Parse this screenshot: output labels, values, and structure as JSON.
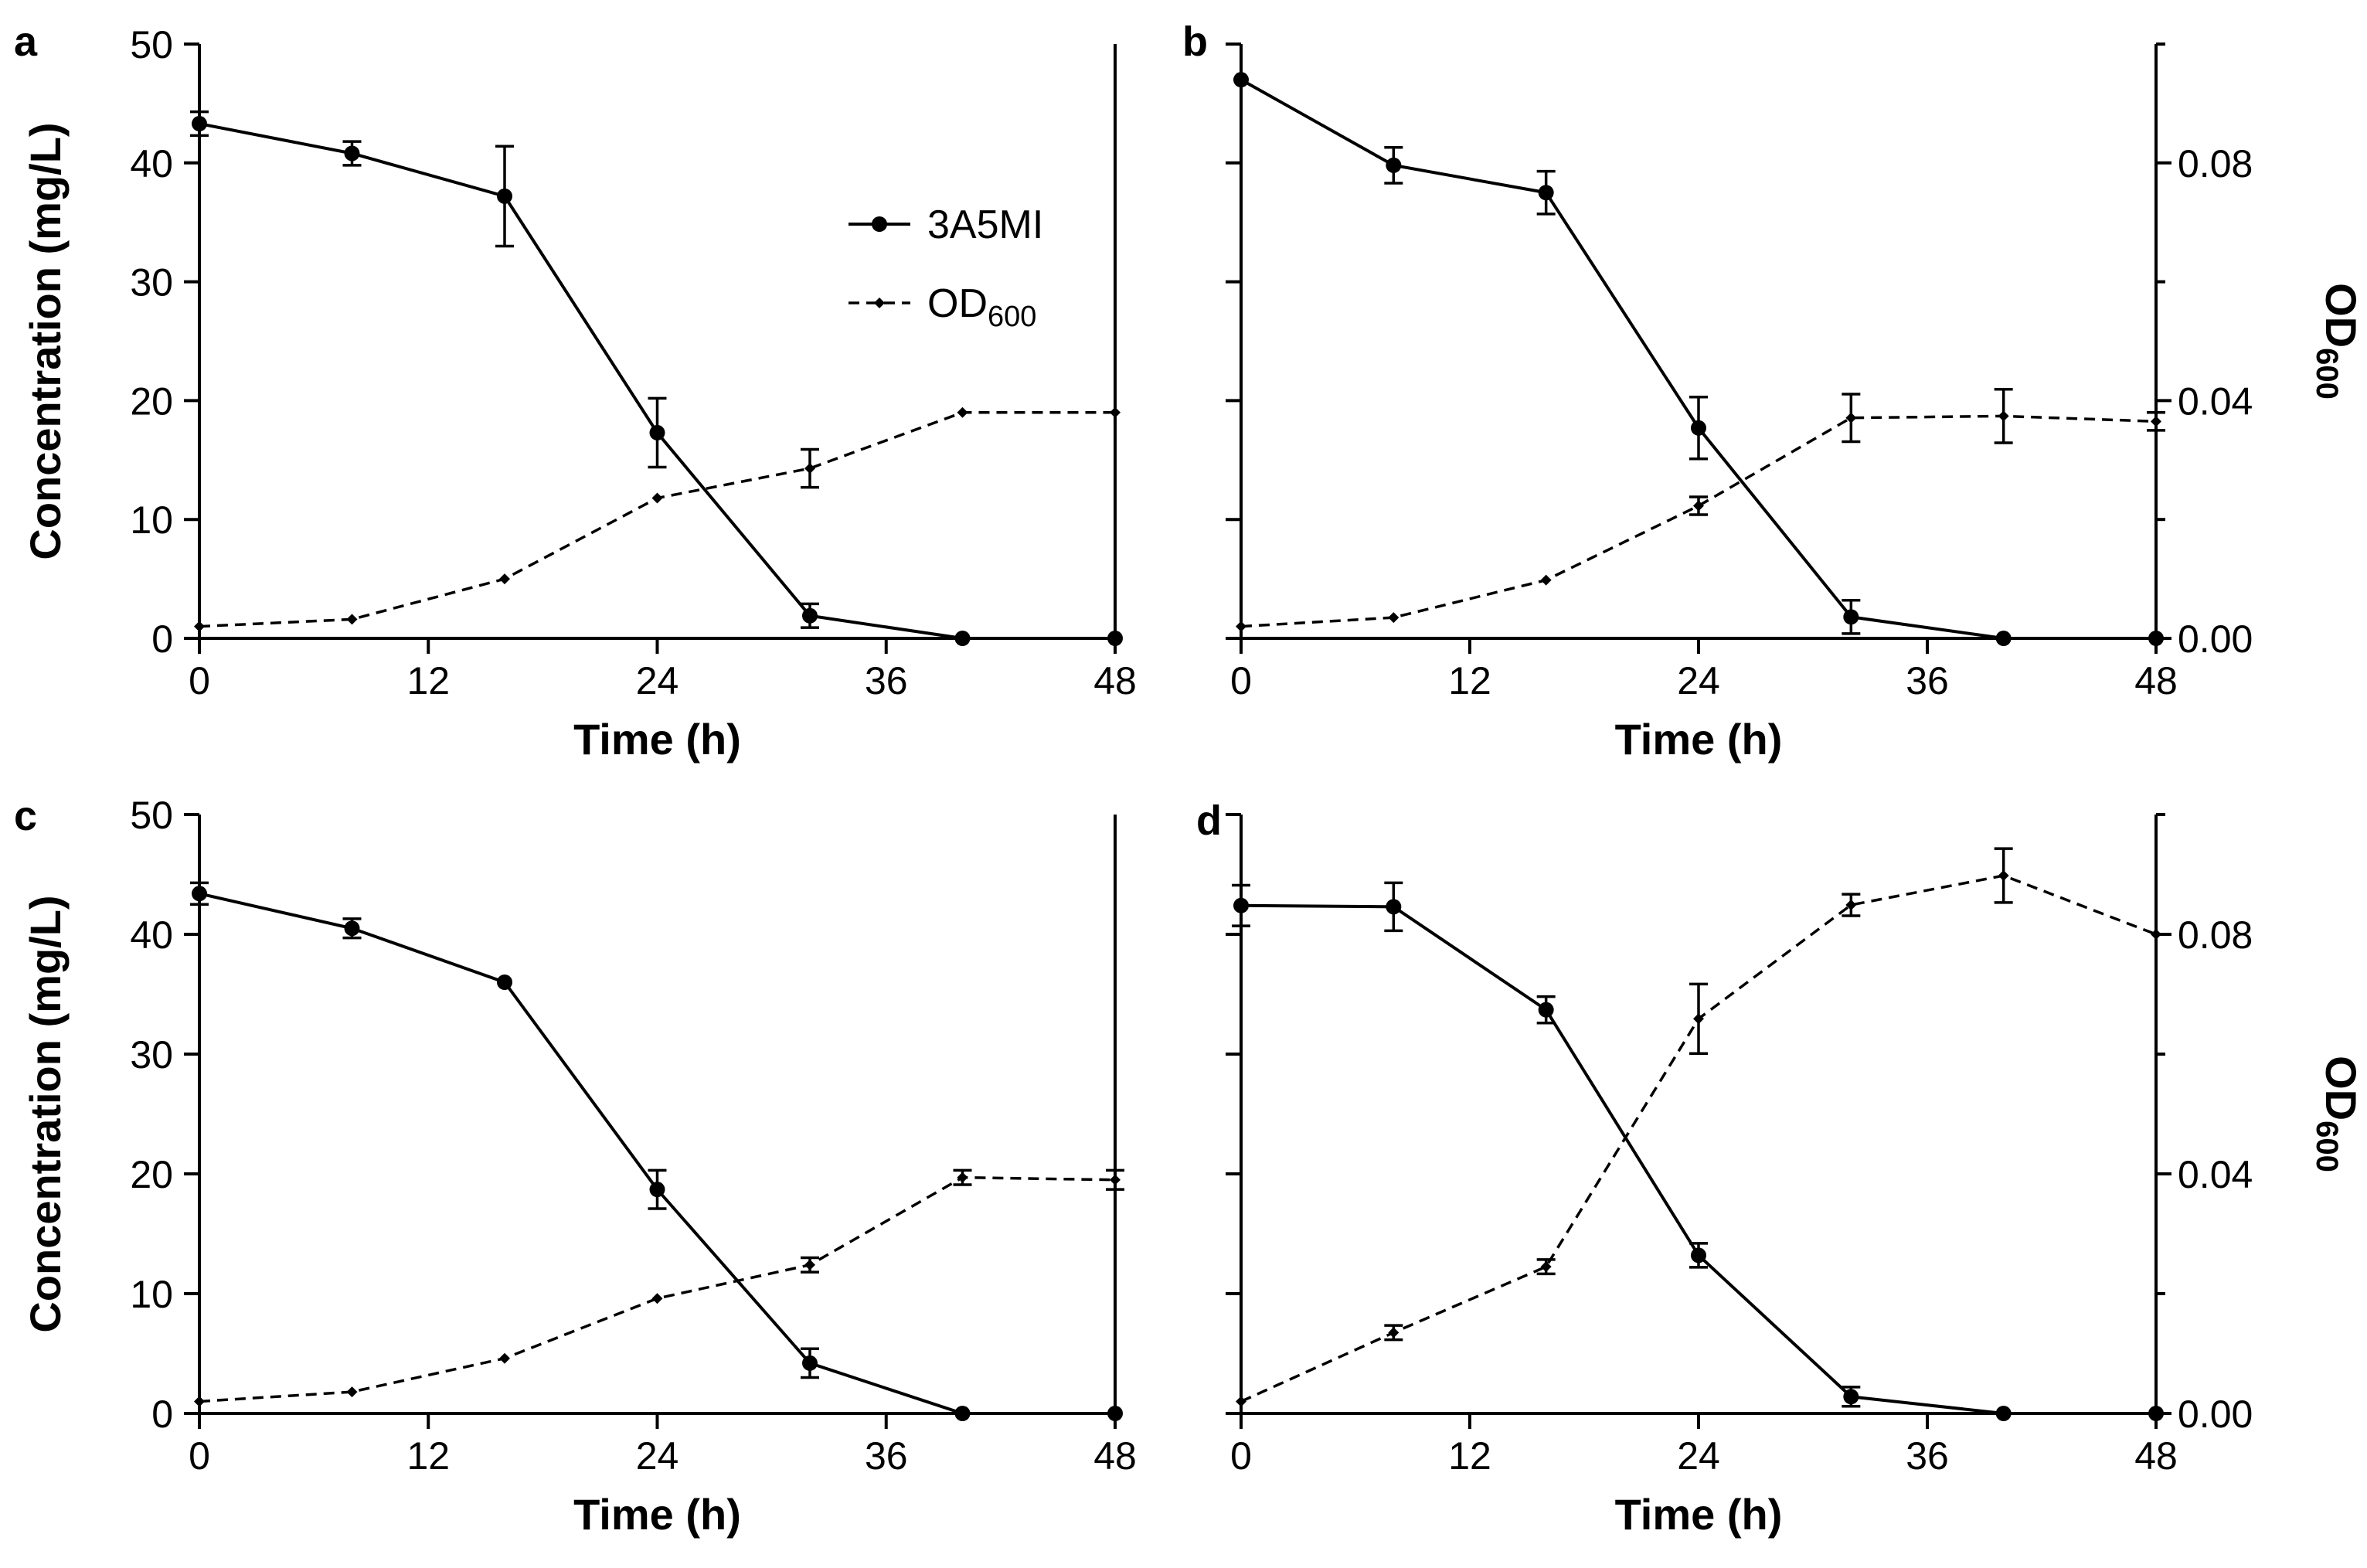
{
  "chart_data": [
    {
      "type": "line",
      "panel": "a",
      "x": [
        0,
        8,
        16,
        24,
        32,
        40,
        48
      ],
      "xlabel": "Time (h)",
      "xticks": [
        0,
        12,
        24,
        36,
        48
      ],
      "xlim": [
        0,
        48
      ],
      "ylabel": "Concentration (mg/L)",
      "ylim": [
        0,
        50
      ],
      "yticks": [
        0,
        10,
        20,
        30,
        40,
        50
      ],
      "legend": {
        "placement": "top-center",
        "entries": [
          {
            "text": "3A5MI"
          },
          {
            "main": "OD",
            "sub": "600"
          }
        ]
      },
      "series": [
        {
          "name": "3A5MI",
          "axis": "left",
          "style": "solid-circle",
          "values": [
            43.3,
            40.8,
            37.2,
            17.3,
            1.9,
            0,
            0
          ],
          "errors": [
            1.0,
            1.0,
            4.2,
            2.9,
            1.0,
            0,
            0
          ]
        },
        {
          "name": "OD600",
          "axis": "left",
          "style": "dashed-diamond",
          "values": [
            1.0,
            1.6,
            5.0,
            11.8,
            14.3,
            19.0,
            19.0
          ],
          "errors": [
            0,
            0,
            0,
            0,
            1.6,
            0,
            0
          ]
        }
      ]
    },
    {
      "type": "line",
      "panel": "b",
      "x": [
        0,
        8,
        16,
        24,
        32,
        40,
        48
      ],
      "xlabel": "Time (h)",
      "xticks": [
        0,
        12,
        24,
        36,
        48
      ],
      "xlim": [
        0,
        48
      ],
      "ylim": [
        0,
        50
      ],
      "y2label": {
        "main": "OD",
        "sub": "600"
      },
      "y2lim": [
        0,
        0.1
      ],
      "y2ticks": [
        0.0,
        0.04,
        0.08
      ],
      "y2ticklabels": [
        "0.00",
        "0.04",
        "0.08"
      ],
      "series": [
        {
          "name": "3A5MI",
          "axis": "left",
          "style": "solid-circle",
          "values": [
            47.0,
            39.8,
            37.5,
            17.7,
            1.8,
            0,
            0
          ],
          "errors": [
            0,
            1.5,
            1.8,
            2.6,
            1.4,
            0,
            0
          ]
        },
        {
          "name": "OD600",
          "axis": "right",
          "style": "dashed-diamond",
          "values": [
            0.002,
            0.0035,
            0.0098,
            0.0223,
            0.0371,
            0.0374,
            0.0365
          ],
          "errors": [
            0,
            0,
            0,
            0.0015,
            0.004,
            0.0045,
            0.0015
          ]
        }
      ]
    },
    {
      "type": "line",
      "panel": "c",
      "x": [
        0,
        8,
        16,
        24,
        32,
        40,
        48
      ],
      "xlabel": "Time (h)",
      "xticks": [
        0,
        12,
        24,
        36,
        48
      ],
      "xlim": [
        0,
        48
      ],
      "ylabel": "Concentration (mg/L)",
      "ylim": [
        0,
        50
      ],
      "yticks": [
        0,
        10,
        20,
        30,
        40,
        50
      ],
      "series": [
        {
          "name": "3A5MI",
          "axis": "left",
          "style": "solid-circle",
          "values": [
            43.4,
            40.5,
            36.0,
            18.7,
            4.2,
            0,
            0
          ],
          "errors": [
            0.9,
            0.8,
            0,
            1.6,
            1.2,
            0,
            0
          ]
        },
        {
          "name": "OD600",
          "axis": "left",
          "style": "dashed-diamond",
          "values": [
            1.0,
            1.8,
            4.6,
            9.6,
            12.4,
            19.7,
            19.5
          ],
          "errors": [
            0,
            0,
            0,
            0,
            0.6,
            0.6,
            0.8
          ]
        }
      ]
    },
    {
      "type": "line",
      "panel": "d",
      "x": [
        0,
        8,
        16,
        24,
        32,
        40,
        48
      ],
      "xlabel": "Time (h)",
      "xticks": [
        0,
        12,
        24,
        36,
        48
      ],
      "xlim": [
        0,
        48
      ],
      "ylim": [
        0,
        50
      ],
      "y2label": {
        "main": "OD",
        "sub": "600"
      },
      "y2lim": [
        0,
        0.1
      ],
      "y2ticks": [
        0.0,
        0.04,
        0.08
      ],
      "y2ticklabels": [
        "0.00",
        "0.04",
        "0.08"
      ],
      "series": [
        {
          "name": "3A5MI",
          "axis": "left",
          "style": "solid-circle",
          "values": [
            42.4,
            42.3,
            33.7,
            13.2,
            1.4,
            0,
            0
          ],
          "errors": [
            1.7,
            2.0,
            1.1,
            1.0,
            0.8,
            0,
            0
          ]
        },
        {
          "name": "OD600",
          "axis": "right",
          "style": "dashed-diamond",
          "values": [
            0.002,
            0.0135,
            0.0245,
            0.0659,
            0.0849,
            0.0898,
            0.08
          ],
          "errors": [
            0,
            0.0012,
            0.0012,
            0.0058,
            0.0018,
            0.0045,
            0
          ]
        }
      ]
    }
  ]
}
